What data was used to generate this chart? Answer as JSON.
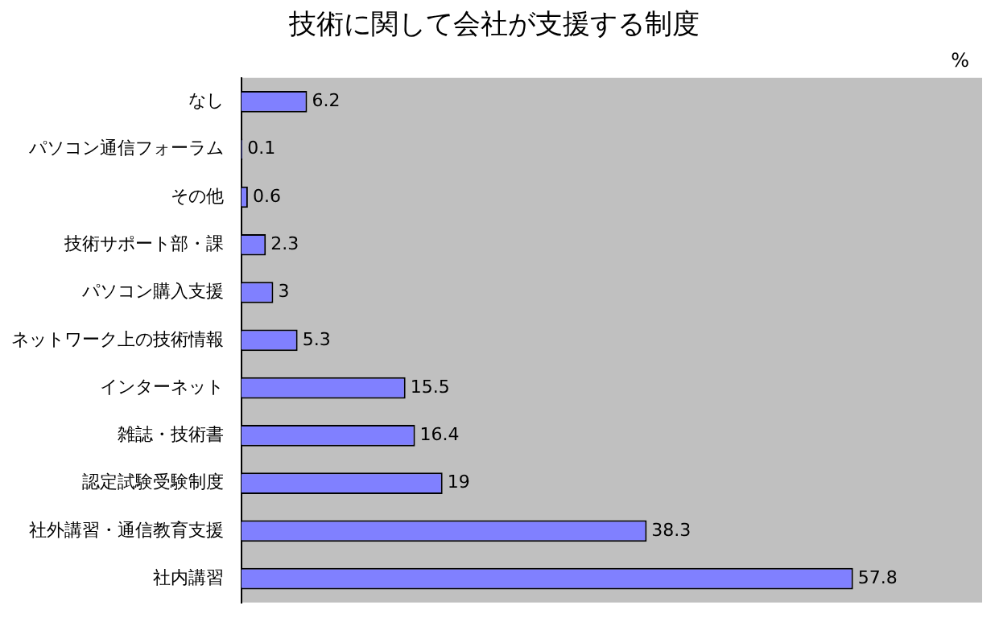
{
  "chart_data": {
    "type": "bar",
    "orientation": "horizontal",
    "title": "技術に関して会社が支援する制度",
    "annotations": [
      "%"
    ],
    "categories": [
      "なし",
      "パソコン通信フォーラム",
      "その他",
      "技術サポート部・課",
      "パソコン購入支援",
      "ネットワーク上の技術情報",
      "インターネット",
      "雑誌・技術書",
      "認定試験受験制度",
      "社外講習・通信教育支援",
      "社内講習"
    ],
    "values": [
      6.2,
      0.1,
      0.6,
      2.3,
      3,
      5.3,
      15.5,
      16.4,
      19,
      38.3,
      57.8
    ],
    "color": "#8080ff",
    "data_labels": true,
    "grid": false,
    "legend": false,
    "tick_labels": "y"
  }
}
